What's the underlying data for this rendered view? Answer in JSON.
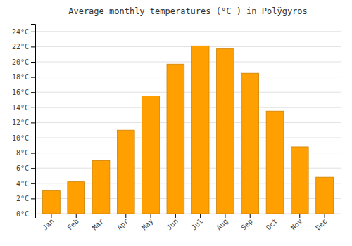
{
  "chart_data": {
    "type": "bar",
    "title": "Average monthly temperatures (°C ) in Polÿgyros",
    "categories": [
      "Jan",
      "Feb",
      "Mar",
      "Apr",
      "May",
      "Jun",
      "Jul",
      "Aug",
      "Sep",
      "Oct",
      "Nov",
      "Dec"
    ],
    "values": [
      3.0,
      4.2,
      7.0,
      11.0,
      15.5,
      19.7,
      22.1,
      21.7,
      18.5,
      13.5,
      8.8,
      4.8
    ],
    "color": "#FFA000",
    "ylim": [
      0,
      25
    ],
    "yticks": [
      {
        "value": 0,
        "label": "0°C"
      },
      {
        "value": 2,
        "label": "2°C"
      },
      {
        "value": 4,
        "label": "4°C"
      },
      {
        "value": 6,
        "label": "6°C"
      },
      {
        "value": 8,
        "label": "8°C"
      },
      {
        "value": 10,
        "label": "10°C"
      },
      {
        "value": 12,
        "label": "12°C"
      },
      {
        "value": 14,
        "label": "14°C"
      },
      {
        "value": 16,
        "label": "16°C"
      },
      {
        "value": 18,
        "label": "18°C"
      },
      {
        "value": 20,
        "label": "20°C"
      },
      {
        "value": 22,
        "label": "22°C"
      },
      {
        "value": 24,
        "label": "24°C"
      }
    ],
    "grid": true
  }
}
